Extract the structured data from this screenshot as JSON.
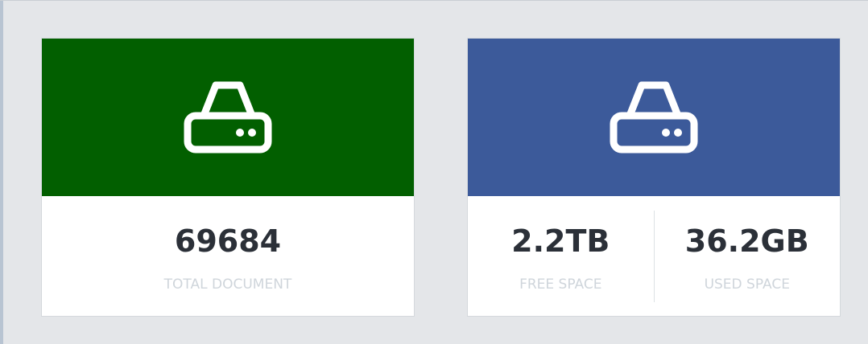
{
  "cards": [
    {
      "stats": [
        {
          "value": "69684",
          "label": "TOTAL DOCUMENT"
        }
      ]
    },
    {
      "stats": [
        {
          "value": "2.2TB",
          "label": "FREE SPACE"
        },
        {
          "value": "36.2GB",
          "label": "USED SPACE"
        }
      ]
    }
  ]
}
